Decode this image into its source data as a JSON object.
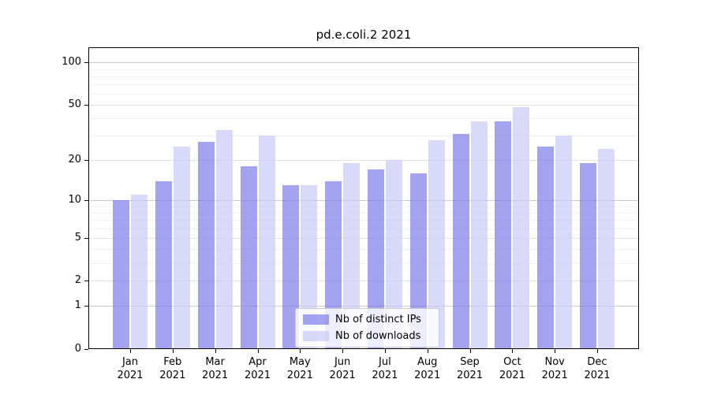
{
  "title": "pd.e.coli.2 2021",
  "chart_data": {
    "type": "bar",
    "title": "pd.e.coli.2 2021",
    "categories": [
      "Jan",
      "Feb",
      "Mar",
      "Apr",
      "May",
      "Jun",
      "Jul",
      "Aug",
      "Sep",
      "Oct",
      "Nov",
      "Dec"
    ],
    "x_tick_year": "2021",
    "series": [
      {
        "name": "Nb of distinct IPs",
        "color": "rgba(124,124,234,0.7)",
        "values": [
          10,
          14,
          27,
          18,
          13,
          14,
          17,
          16,
          31,
          38,
          25,
          19
        ]
      },
      {
        "name": "Nb of downloads",
        "color": "rgba(201,201,248,0.7)",
        "values": [
          11,
          25,
          33,
          30,
          13,
          19,
          20,
          28,
          38,
          48,
          30,
          24
        ]
      }
    ],
    "yscale": "log1p",
    "ylim": [
      0,
      128
    ],
    "y_ticks": [
      100,
      50,
      20,
      10,
      5,
      2,
      1,
      0
    ],
    "grid": {
      "major": [
        1,
        10,
        100
      ],
      "mid": [
        2,
        5,
        20,
        50
      ],
      "minor": [
        3,
        4,
        6,
        7,
        8,
        9,
        30,
        40,
        60,
        70,
        80,
        90
      ]
    },
    "legend_position": "lower center",
    "colors": {
      "grid_major": "#c9c9c9",
      "grid_mid": "#e2e2e2",
      "grid_minor": "#f0f0f0",
      "spine": "#000000",
      "text": "#000000",
      "legend_border": "#cccccc"
    }
  }
}
